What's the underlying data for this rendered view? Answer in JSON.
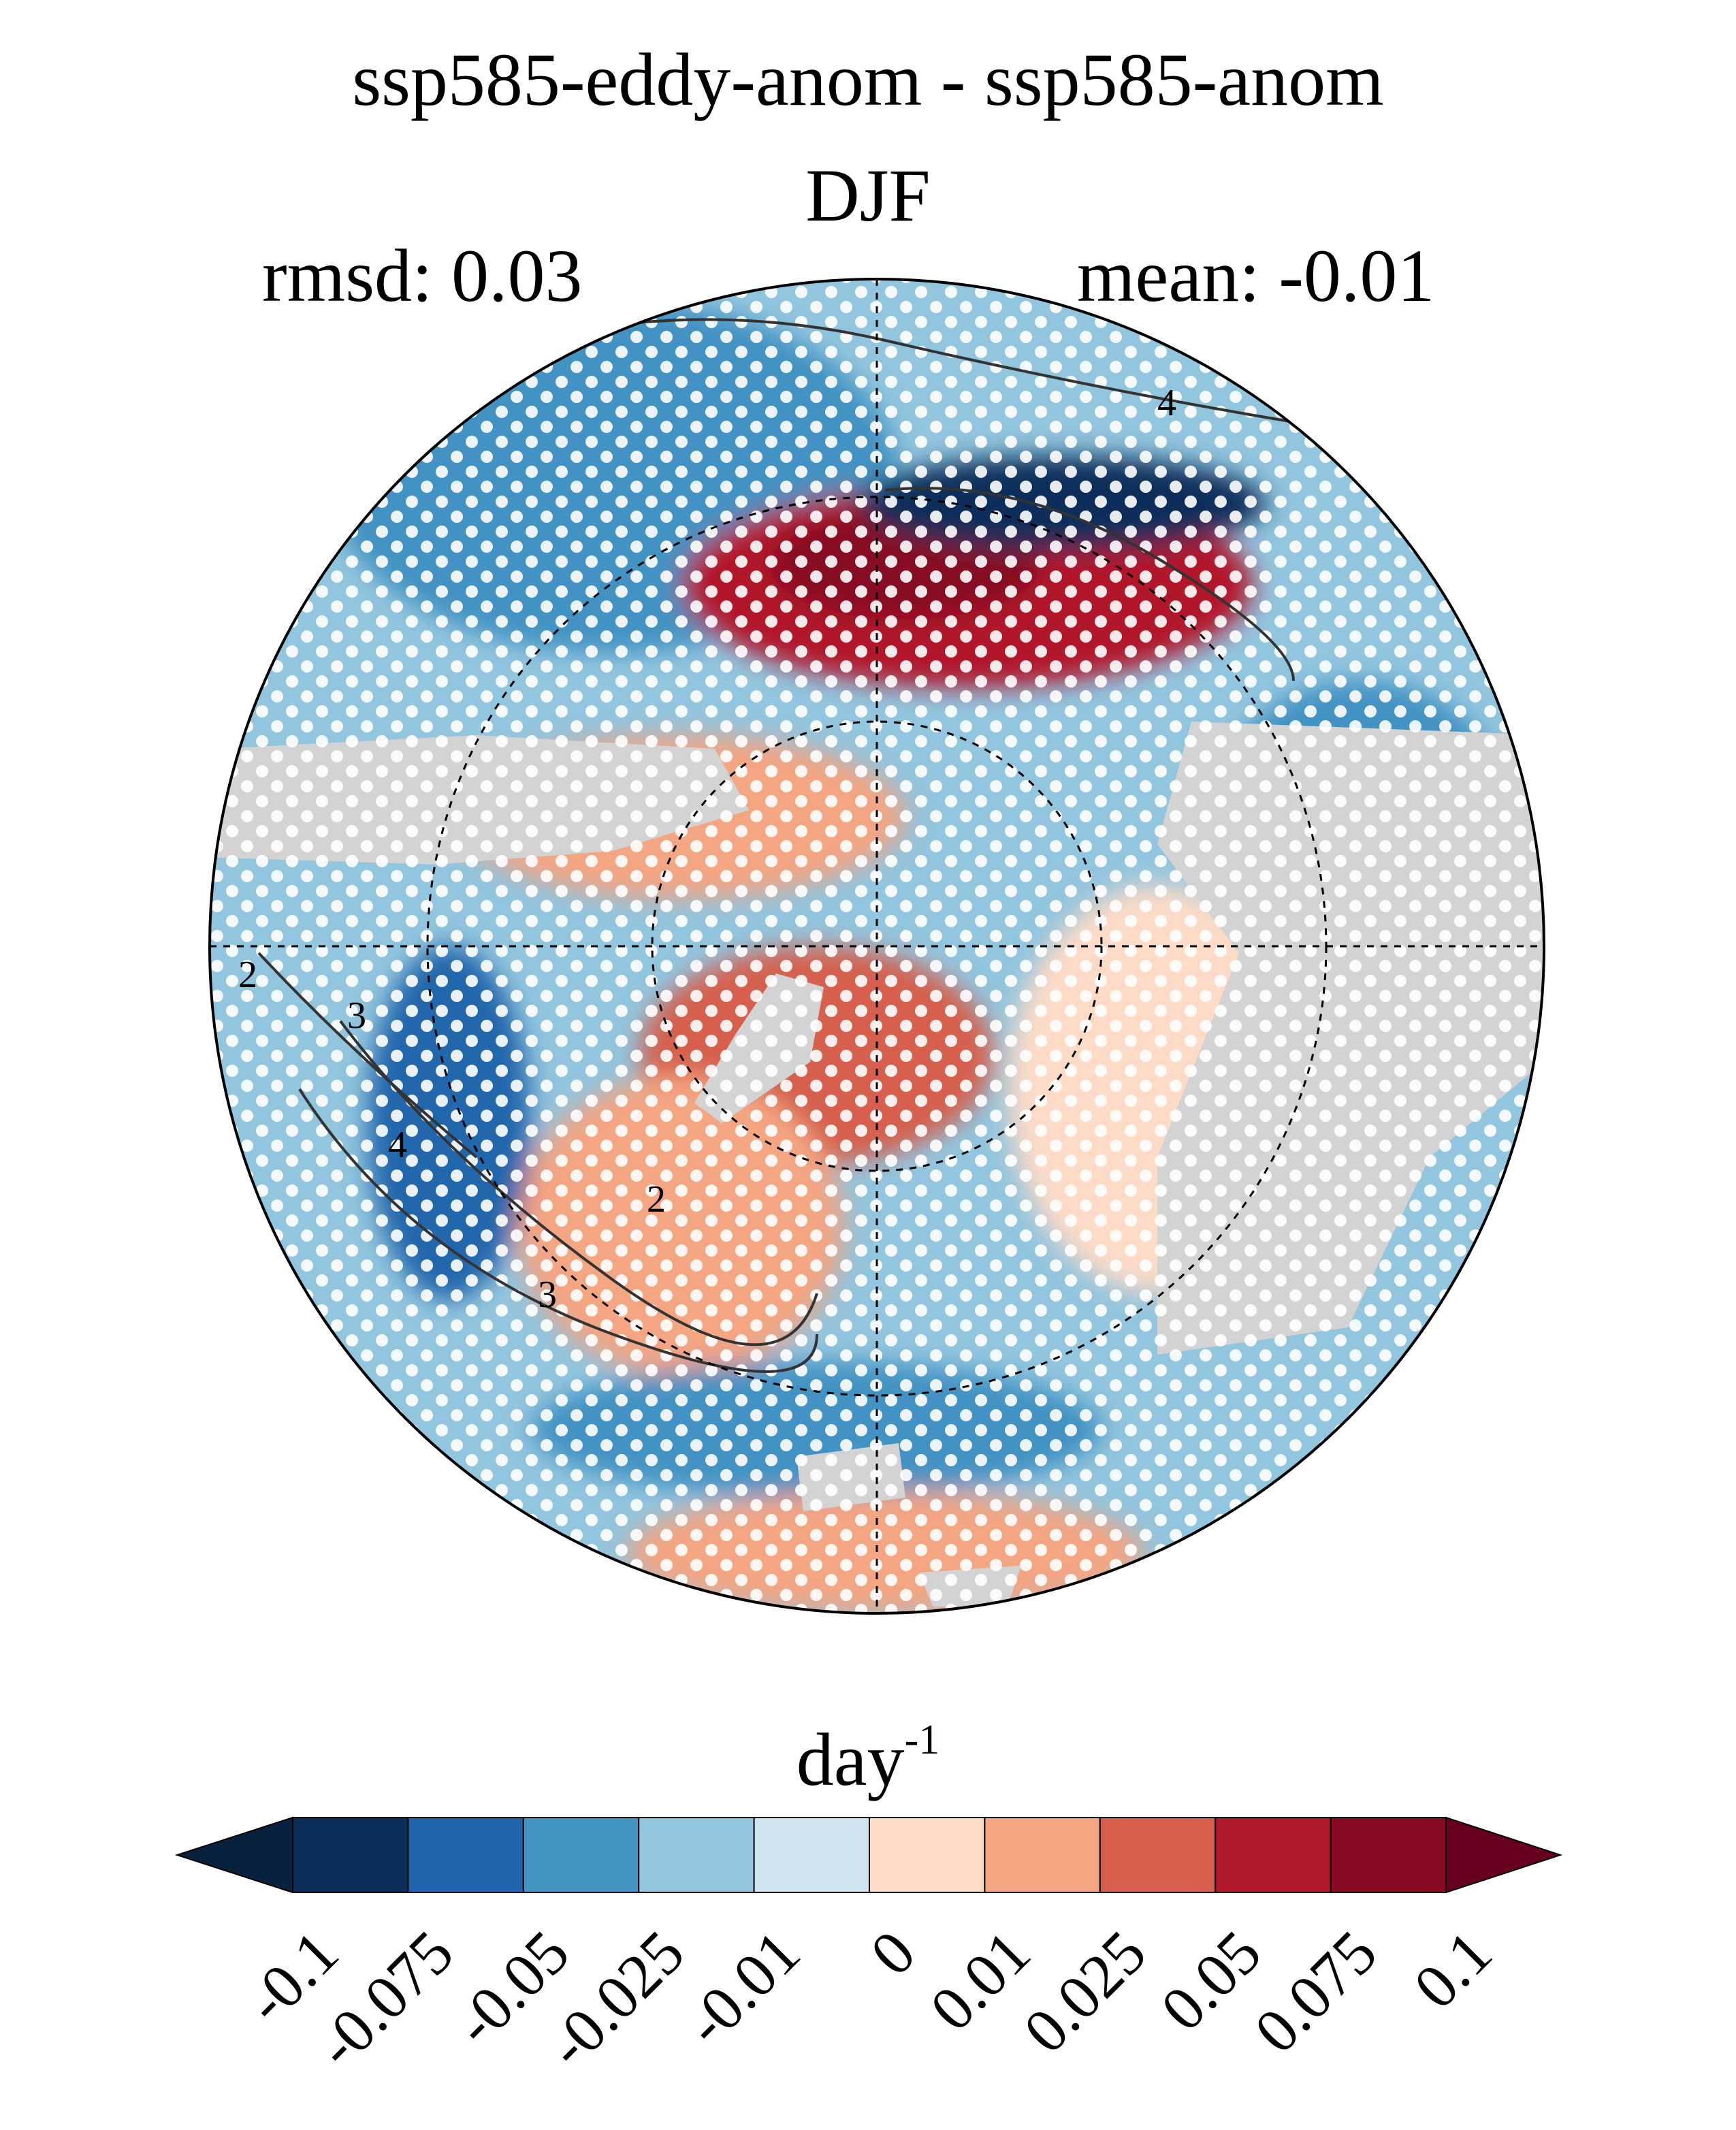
{
  "title": "ssp585-eddy-anom - ssp585-anom",
  "season": "DJF",
  "rmsd": "rmsd: 0.03",
  "mean": "mean: -0.01",
  "map": {
    "projection": "north-polar-stereographic",
    "land_mask_color": "#d3d3d3",
    "contour_labels": [
      "4",
      "2",
      "3",
      "4",
      "2",
      "3"
    ],
    "stippling": "white dots"
  },
  "colorbar": {
    "units_base": "day",
    "units_exp": "-1",
    "extend": "both",
    "ticks": [
      "-0.1",
      "-0.075",
      "-0.05",
      "-0.025",
      "-0.01",
      "0",
      "0.01",
      "0.025",
      "0.05",
      "0.075",
      "0.1"
    ],
    "colors": [
      "#08213f",
      "#0b2d5a",
      "#2166ac",
      "#4393c3",
      "#92c5de",
      "#d1e5f0",
      "#fddbc7",
      "#f4a582",
      "#d6604d",
      "#b2182b",
      "#870a24",
      "#67001f"
    ]
  }
}
